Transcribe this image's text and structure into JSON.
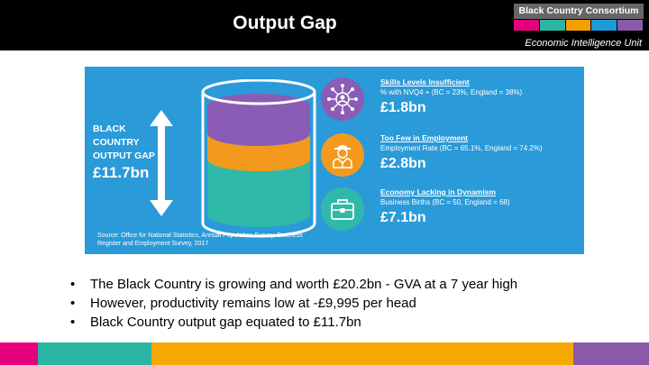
{
  "header": {
    "title": "Output Gap",
    "brand_name": "Black Country Consortium",
    "unit_name": "Economic Intelligence Unit",
    "stripe_colors": [
      "#e6007e",
      "#2ab5a5",
      "#f59e00",
      "#1e9ad6",
      "#8a5aa8"
    ]
  },
  "infographic": {
    "gap_label": "BLACK COUNTRY OUTPUT GAP",
    "gap_value": "£11.7bn",
    "source_text": "Source: Office for National Statistics, Annual Population Survey, Business Register and Employment Survey, 2017",
    "items": [
      {
        "title": "Skills Levels Insufficient",
        "detail": "% with NVQ4 + (BC = 23%, England = 38%)",
        "value": "£1.8bn",
        "icon": "skills-network-icon",
        "circle_color": "#8b5cb5"
      },
      {
        "title": "Too Few in Employment",
        "detail": "Employment Rate (BC = 65.1%, England = 74.2%)",
        "value": "£2.8bn",
        "icon": "worker-icon",
        "circle_color": "#f39a1e"
      },
      {
        "title": "Economy Lacking in Dynamism",
        "detail": "Business Births (BC = 50, England = 68)",
        "value": "£7.1bn",
        "icon": "briefcase-icon",
        "circle_color": "#2fb9a8"
      }
    ],
    "cylinder_colors": {
      "top": "#8b5cb5",
      "middle": "#f39a1e",
      "bottom": "#2fb9a8"
    }
  },
  "bullets": [
    "The Black Country is growing and worth £20.2bn - GVA at a 7 year high",
    "However, productivity remains low at -£9,995 per head",
    "Black Country output gap equated to £11.7bn"
  ],
  "footer": {
    "colors": [
      "#e6007e",
      "#2ab5a5",
      "#f5a800",
      "#8a5aa8"
    ]
  }
}
